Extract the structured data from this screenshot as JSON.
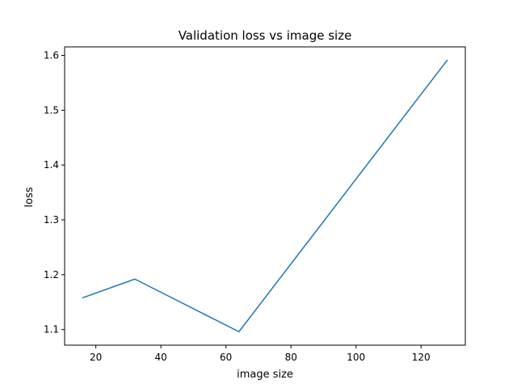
{
  "chart_data": {
    "type": "line",
    "title": "Validation loss vs image size",
    "xlabel": "image size",
    "ylabel": "loss",
    "xlim": [
      10.4,
      133.6
    ],
    "ylim": [
      1.0715,
      1.6155
    ],
    "x_ticks": [
      20,
      40,
      60,
      80,
      100,
      120
    ],
    "x_tick_labels": [
      "20",
      "40",
      "60",
      "80",
      "100",
      "120"
    ],
    "y_ticks": [
      1.1,
      1.2,
      1.3,
      1.4,
      1.5,
      1.6
    ],
    "y_tick_labels": [
      "1.1",
      "1.2",
      "1.3",
      "1.4",
      "1.5",
      "1.6"
    ],
    "grid": false,
    "legend": "none",
    "series": [
      {
        "color": "#1f77b4",
        "x": [
          16,
          32,
          64,
          128
        ],
        "y": [
          1.158,
          1.192,
          1.096,
          1.591
        ]
      }
    ]
  }
}
